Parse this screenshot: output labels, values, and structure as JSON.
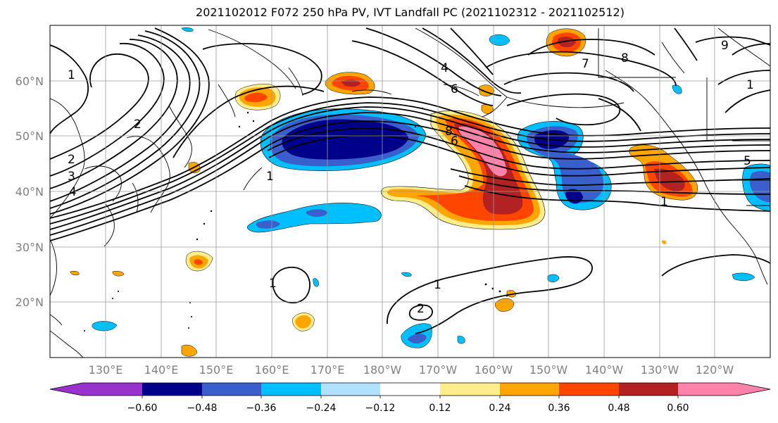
{
  "title": "2021102012 F072 250 hPa PV, IVT Landfall PC (2021102312 - 2021102512)",
  "map": {
    "lat_labels": [
      "60°N",
      "50°N",
      "40°N",
      "30°N",
      "20°N"
    ],
    "lon_labels": [
      "130°E",
      "140°E",
      "150°E",
      "160°E",
      "170°E",
      "180°W",
      "170°W",
      "160°W",
      "150°W",
      "140°W",
      "130°W",
      "120°W"
    ],
    "contour_labels": [
      "1",
      "2",
      "2",
      "3",
      "4",
      "1",
      "6",
      "4",
      "7",
      "8",
      "8",
      "6",
      "9",
      "1",
      "5",
      "1",
      "1",
      "2",
      "1"
    ]
  },
  "colorbar": {
    "ticks": [
      "−0.60",
      "−0.48",
      "−0.36",
      "−0.24",
      "−0.12",
      "0.12",
      "0.24",
      "0.36",
      "0.48",
      "0.60"
    ],
    "colors": [
      "#9932cc",
      "#00008b",
      "#3a5fcd",
      "#00bfff",
      "#b0e2ff",
      "#ffffff",
      "#ffec8b",
      "#ffa500",
      "#ff4500",
      "#b22222",
      "#ff82ab"
    ]
  }
}
